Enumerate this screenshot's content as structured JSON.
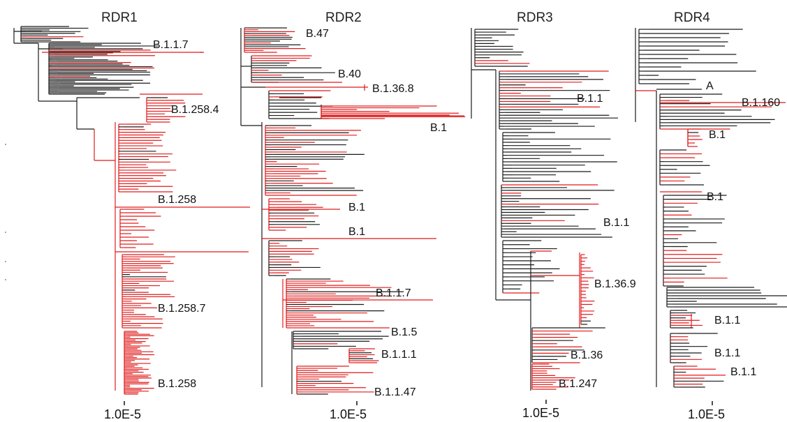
{
  "panels": [
    {
      "id": "rdr1",
      "title": "RDR1",
      "scale_label": "1.0E-5",
      "clades": [
        "B.1.1.7",
        "B.1.258.4",
        "B.1.258",
        "B.1.258.7",
        "B.1.258"
      ]
    },
    {
      "id": "rdr2",
      "title": "RDR2",
      "scale_label": "1.0E-5",
      "clades": [
        "B.47",
        "B.40",
        "B.1.36.8",
        "B.1",
        "B.1",
        "B.1",
        "B.1.1.7",
        "B.1.5",
        "B.1.1.1",
        "B.1.1.47"
      ]
    },
    {
      "id": "rdr3",
      "title": "RDR3",
      "scale_label": "1.0E-5",
      "clades": [
        "B.1.1",
        "B.1.1",
        "B.1.36.9",
        "B.1.36",
        "B.1.247"
      ]
    },
    {
      "id": "rdr4",
      "title": "RDR4",
      "scale_label": "1.0E-5",
      "clades": [
        "A",
        "B.1.160",
        "B.1",
        "B.1",
        "B.1.1",
        "B.1.1",
        "B.1.1"
      ]
    }
  ],
  "colors": {
    "highlight": "#e01a1a",
    "base": "#1a1a1a"
  }
}
